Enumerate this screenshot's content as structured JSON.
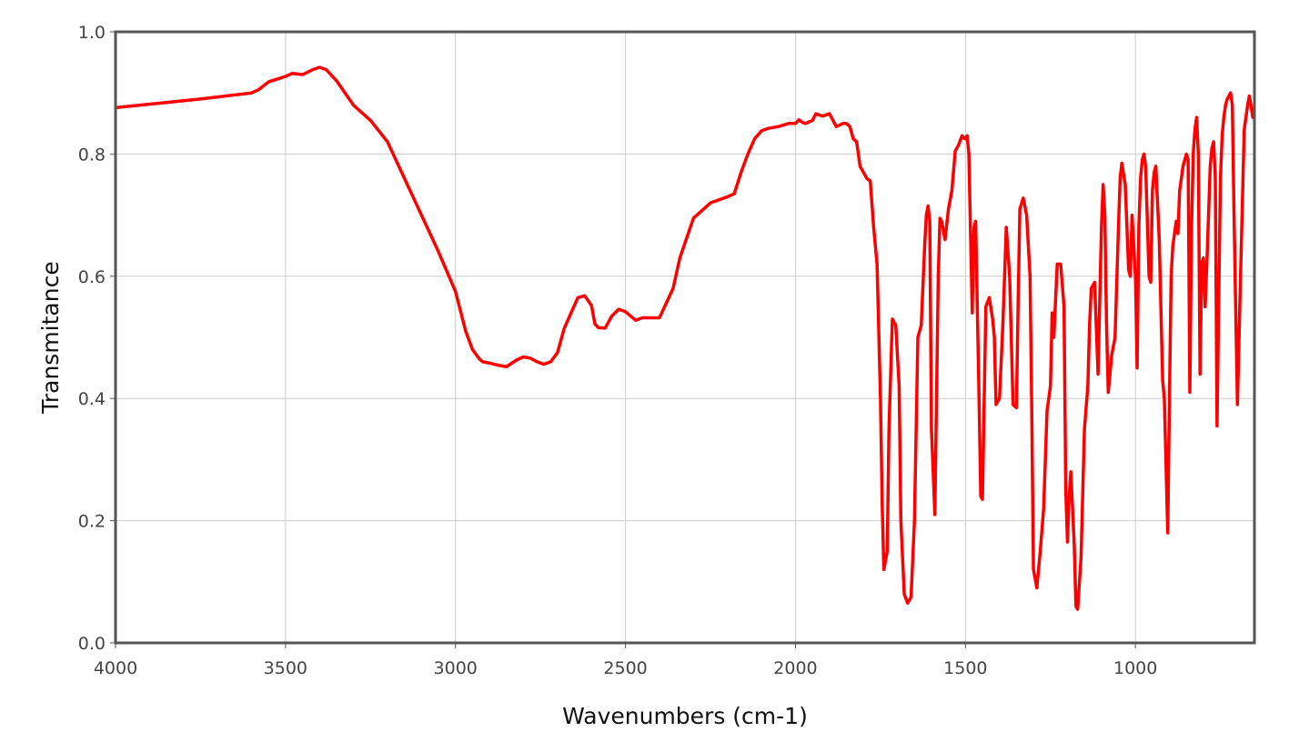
{
  "chart_data": {
    "type": "line",
    "title": "",
    "xlabel": "Wavenumbers (cm-1)",
    "ylabel": "Transmitance",
    "xlim": [
      4000,
      650
    ],
    "ylim": [
      0.0,
      1.0
    ],
    "x_reversed": true,
    "grid": true,
    "x_ticks": [
      4000,
      3500,
      3000,
      2500,
      2000,
      1500,
      1000
    ],
    "x_tick_labels": [
      "4000",
      "3500",
      "3000",
      "2500",
      "2000",
      "1500",
      "1000"
    ],
    "y_ticks": [
      0.0,
      0.2,
      0.4,
      0.6,
      0.8,
      1.0
    ],
    "y_tick_labels": [
      "0.0",
      "0.2",
      "0.4",
      "0.6",
      "0.8",
      "1.0"
    ],
    "line_color": "#ff0000",
    "series": [
      {
        "x": [
          4000,
          3750,
          3600,
          3580,
          3550,
          3500,
          3480,
          3450,
          3420,
          3400,
          3380,
          3350,
          3300,
          3250,
          3200,
          3150,
          3100,
          3050,
          3000,
          2970,
          2950,
          2930,
          2920,
          2900,
          2880,
          2850,
          2820,
          2800,
          2780,
          2760,
          2740,
          2720,
          2700,
          2680,
          2660,
          2640,
          2620,
          2600,
          2590,
          2580,
          2560,
          2540,
          2520,
          2500,
          2470,
          2450,
          2400,
          2360,
          2340,
          2300,
          2250,
          2200,
          2180,
          2160,
          2140,
          2120,
          2100,
          2080,
          2050,
          2020,
          2000,
          1990,
          1980,
          1970,
          1950,
          1940,
          1920,
          1900,
          1880,
          1860,
          1850,
          1840,
          1830,
          1820,
          1810,
          1800,
          1790,
          1780,
          1770,
          1760,
          1750,
          1745,
          1740,
          1730,
          1725,
          1715,
          1705,
          1695,
          1690,
          1680,
          1670,
          1660,
          1650,
          1640,
          1630,
          1620,
          1615,
          1610,
          1605,
          1600,
          1590,
          1580,
          1575,
          1570,
          1560,
          1550,
          1540,
          1530,
          1520,
          1510,
          1505,
          1500,
          1495,
          1490,
          1480,
          1475,
          1470,
          1460,
          1455,
          1450,
          1440,
          1430,
          1420,
          1415,
          1410,
          1400,
          1390,
          1380,
          1370,
          1360,
          1350,
          1345,
          1340,
          1330,
          1320,
          1310,
          1305,
          1300,
          1290,
          1280,
          1270,
          1260,
          1250,
          1245,
          1240,
          1230,
          1220,
          1210,
          1205,
          1200,
          1195,
          1190,
          1180,
          1175,
          1170,
          1160,
          1150,
          1140,
          1135,
          1130,
          1120,
          1110,
          1100,
          1095,
          1090,
          1085,
          1080,
          1070,
          1060,
          1050,
          1045,
          1040,
          1030,
          1020,
          1015,
          1010,
          1000,
          995,
          990,
          985,
          980,
          975,
          970,
          960,
          955,
          950,
          945,
          940,
          930,
          920,
          915,
          910,
          905,
          900,
          895,
          890,
          880,
          875,
          870,
          860,
          850,
          845,
          840,
          835,
          830,
          825,
          820,
          815,
          810,
          805,
          800,
          795,
          790,
          785,
          780,
          775,
          770,
          765,
          760,
          755,
          750,
          745,
          740,
          735,
          730,
          725,
          720,
          715,
          710,
          700,
          690,
          680,
          670,
          665,
          660,
          655,
          650
        ],
        "y": [
          0.876,
          0.89,
          0.9,
          0.905,
          0.918,
          0.927,
          0.932,
          0.93,
          0.938,
          0.942,
          0.938,
          0.92,
          0.88,
          0.855,
          0.82,
          0.76,
          0.7,
          0.64,
          0.575,
          0.51,
          0.48,
          0.465,
          0.46,
          0.458,
          0.455,
          0.452,
          0.463,
          0.468,
          0.466,
          0.46,
          0.456,
          0.46,
          0.475,
          0.515,
          0.54,
          0.565,
          0.568,
          0.552,
          0.522,
          0.516,
          0.515,
          0.535,
          0.546,
          0.542,
          0.528,
          0.532,
          0.532,
          0.58,
          0.63,
          0.695,
          0.72,
          0.73,
          0.735,
          0.77,
          0.8,
          0.825,
          0.838,
          0.842,
          0.845,
          0.85,
          0.85,
          0.856,
          0.852,
          0.85,
          0.855,
          0.866,
          0.862,
          0.866,
          0.845,
          0.85,
          0.85,
          0.845,
          0.825,
          0.82,
          0.78,
          0.77,
          0.76,
          0.756,
          0.68,
          0.62,
          0.4,
          0.23,
          0.12,
          0.15,
          0.35,
          0.53,
          0.52,
          0.42,
          0.2,
          0.08,
          0.065,
          0.075,
          0.2,
          0.5,
          0.52,
          0.65,
          0.7,
          0.715,
          0.69,
          0.35,
          0.21,
          0.6,
          0.695,
          0.69,
          0.66,
          0.71,
          0.74,
          0.805,
          0.815,
          0.83,
          0.826,
          0.825,
          0.83,
          0.8,
          0.54,
          0.68,
          0.69,
          0.4,
          0.24,
          0.235,
          0.55,
          0.565,
          0.53,
          0.5,
          0.39,
          0.4,
          0.52,
          0.68,
          0.6,
          0.39,
          0.385,
          0.56,
          0.71,
          0.728,
          0.7,
          0.6,
          0.38,
          0.12,
          0.09,
          0.15,
          0.22,
          0.38,
          0.42,
          0.54,
          0.5,
          0.62,
          0.62,
          0.55,
          0.25,
          0.165,
          0.24,
          0.28,
          0.16,
          0.06,
          0.055,
          0.14,
          0.35,
          0.42,
          0.52,
          0.58,
          0.59,
          0.44,
          0.68,
          0.75,
          0.7,
          0.52,
          0.41,
          0.47,
          0.5,
          0.68,
          0.76,
          0.785,
          0.75,
          0.61,
          0.6,
          0.7,
          0.6,
          0.45,
          0.68,
          0.76,
          0.79,
          0.8,
          0.78,
          0.6,
          0.59,
          0.74,
          0.77,
          0.78,
          0.66,
          0.43,
          0.4,
          0.29,
          0.18,
          0.4,
          0.6,
          0.65,
          0.69,
          0.67,
          0.74,
          0.78,
          0.8,
          0.79,
          0.41,
          0.68,
          0.8,
          0.84,
          0.86,
          0.8,
          0.44,
          0.62,
          0.63,
          0.55,
          0.62,
          0.7,
          0.78,
          0.81,
          0.82,
          0.76,
          0.355,
          0.56,
          0.76,
          0.83,
          0.86,
          0.88,
          0.89,
          0.895,
          0.9,
          0.88,
          0.7,
          0.39,
          0.62,
          0.84,
          0.88,
          0.895,
          0.88,
          0.86,
          0.86
        ]
      }
    ]
  }
}
